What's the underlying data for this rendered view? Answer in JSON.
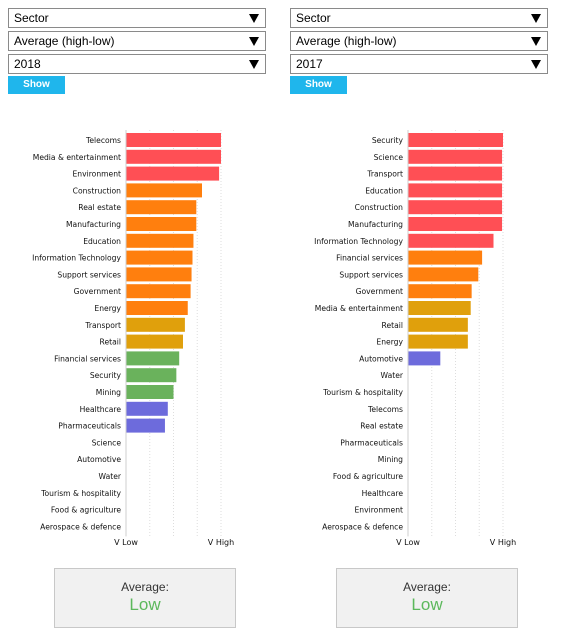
{
  "panels": [
    {
      "id": "left",
      "selects": {
        "category": "Sector",
        "measure": "Average (high-low)",
        "year": "2018"
      },
      "show_label": "Show",
      "average": {
        "label": "Average:",
        "value": "Low"
      }
    },
    {
      "id": "right",
      "selects": {
        "category": "Sector",
        "measure": "Average (high-low)",
        "year": "2017"
      },
      "show_label": "Show",
      "average": {
        "label": "Average:",
        "value": "Low"
      }
    }
  ],
  "colors": {
    "red": "#ff4f55",
    "orange": "#ff7f0e",
    "gold": "#e0a00c",
    "green": "#6ab25c",
    "blue": "#6d6bdc",
    "button": "#1fb6ec"
  },
  "chart_data": [
    {
      "type": "bar",
      "orientation": "horizontal",
      "xlim": [
        0,
        100
      ],
      "x_tick_labels": [
        "V Low",
        "V High"
      ],
      "categories": [
        "Telecoms",
        "Media & entertainment",
        "Environment",
        "Construction",
        "Real estate",
        "Manufacturing",
        "Education",
        "Information Technology",
        "Support services",
        "Government",
        "Energy",
        "Transport",
        "Retail",
        "Financial services",
        "Security",
        "Mining",
        "Healthcare",
        "Pharmaceuticals",
        "Science",
        "Automotive",
        "Water",
        "Tourism & hospitality",
        "Food & agriculture",
        "Aerospace & defence"
      ],
      "values": [
        100,
        100,
        98,
        80,
        74,
        74,
        71,
        70,
        69,
        68,
        65,
        62,
        60,
        56,
        53,
        50,
        44,
        41,
        0,
        0,
        0,
        0,
        0,
        0
      ],
      "bar_colors": [
        "red",
        "red",
        "red",
        "orange",
        "orange",
        "orange",
        "orange",
        "orange",
        "orange",
        "orange",
        "orange",
        "gold",
        "gold",
        "green",
        "green",
        "green",
        "blue",
        "blue",
        "none",
        "none",
        "none",
        "none",
        "none",
        "none"
      ]
    },
    {
      "type": "bar",
      "orientation": "horizontal",
      "xlim": [
        0,
        100
      ],
      "x_tick_labels": [
        "V Low",
        "V High"
      ],
      "categories": [
        "Security",
        "Science",
        "Transport",
        "Education",
        "Construction",
        "Manufacturing",
        "Information Technology",
        "Financial services",
        "Support services",
        "Government",
        "Media & entertainment",
        "Retail",
        "Energy",
        "Automotive",
        "Water",
        "Tourism & hospitality",
        "Telecoms",
        "Real estate",
        "Pharmaceuticals",
        "Mining",
        "Food & agriculture",
        "Healthcare",
        "Environment",
        "Aerospace & defence"
      ],
      "values": [
        100,
        99,
        99,
        99,
        99,
        99,
        90,
        78,
        74,
        67,
        66,
        63,
        63,
        34,
        0,
        0,
        0,
        0,
        0,
        0,
        0,
        0,
        0,
        0
      ],
      "bar_colors": [
        "red",
        "red",
        "red",
        "red",
        "red",
        "red",
        "red",
        "orange",
        "orange",
        "orange",
        "gold",
        "gold",
        "gold",
        "blue",
        "none",
        "none",
        "none",
        "none",
        "none",
        "none",
        "none",
        "none",
        "none",
        "none"
      ]
    }
  ]
}
